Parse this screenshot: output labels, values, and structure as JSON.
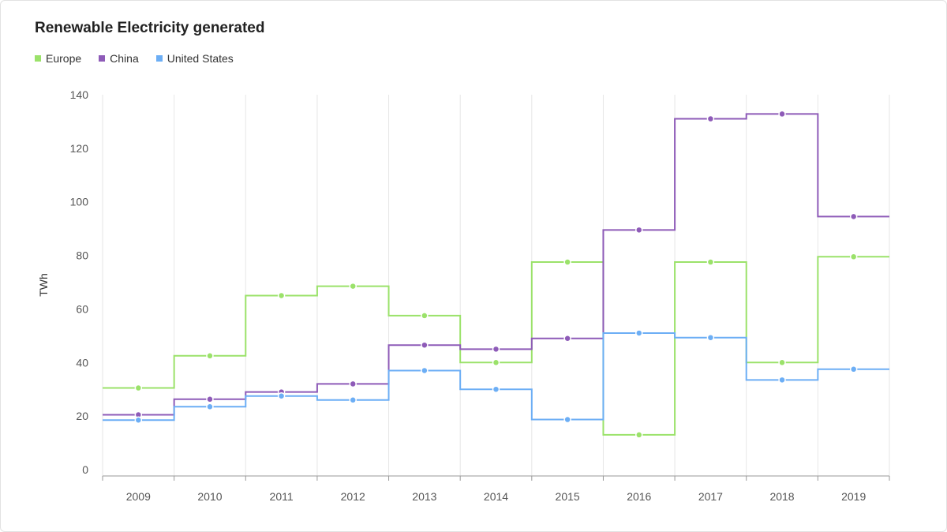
{
  "chart_data": {
    "type": "line",
    "step": true,
    "title": "Renewable Electricity generated",
    "xlabel": "",
    "ylabel": "TWh",
    "categories": [
      "2009",
      "2010",
      "2011",
      "2012",
      "2013",
      "2014",
      "2015",
      "2016",
      "2017",
      "2018",
      "2019"
    ],
    "ylim": [
      0,
      140
    ],
    "yticks": [
      0,
      20,
      40,
      60,
      80,
      100,
      120,
      140
    ],
    "grid": "vertical",
    "legend_position": "top-left",
    "series": [
      {
        "name": "Europe",
        "color": "#9be26a",
        "values": [
          30.5,
          42.5,
          65,
          68.5,
          57.5,
          40,
          77.5,
          13,
          77.5,
          40,
          79.5
        ]
      },
      {
        "name": "China",
        "color": "#8e5bb8",
        "values": [
          20.5,
          26.3,
          29,
          32,
          46.5,
          45,
          49,
          89.5,
          131,
          132.8,
          94.5
        ]
      },
      {
        "name": "United States",
        "color": "#6caef5",
        "values": [
          18.5,
          23.5,
          27.5,
          26,
          37,
          30,
          18.7,
          51,
          49.3,
          33.5,
          37.5
        ]
      }
    ]
  }
}
